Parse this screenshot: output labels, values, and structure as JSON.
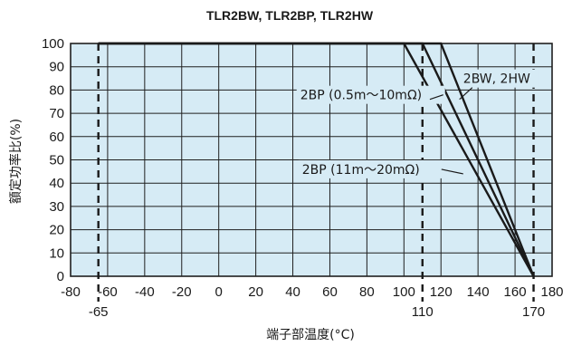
{
  "chart_data": {
    "type": "line",
    "title": "TLR2BW, TLR2BP, TLR2HW",
    "xlabel": "端子部温度(°C)",
    "ylabel": "額定功率比(%)",
    "xlim": [
      -80,
      180
    ],
    "ylim": [
      0,
      100
    ],
    "x_ticks": [
      "-80",
      "-60",
      "-40",
      "-20",
      "0",
      "20",
      "40",
      "60",
      "80",
      "100",
      "120",
      "140",
      "160",
      "180"
    ],
    "y_ticks": [
      "0",
      "10",
      "20",
      "30",
      "40",
      "50",
      "60",
      "70",
      "80",
      "90",
      "100"
    ],
    "extra_x_labels": [
      {
        "x": -65,
        "text": "-65"
      },
      {
        "x": 110,
        "text": "110"
      },
      {
        "x": 170,
        "text": "170"
      }
    ],
    "dashed_verticals": [
      -65,
      110,
      170
    ],
    "grid": true,
    "background_color": "#d6ebf5",
    "grid_color": "#1f1f1f",
    "series": [
      {
        "label": "2BP (11m～20mΩ)",
        "x": [
          -65,
          100,
          170
        ],
        "y": [
          100,
          100,
          0
        ]
      },
      {
        "label": "2BP (0.5m～10mΩ)",
        "x": [
          -65,
          110,
          170
        ],
        "y": [
          100,
          100,
          0
        ]
      },
      {
        "label": "2BW, 2HW",
        "x": [
          -65,
          120,
          170
        ],
        "y": [
          100,
          100,
          0
        ]
      }
    ],
    "annotations": [
      {
        "text": "2BW, 2HW",
        "x": 132,
        "y": 83,
        "arrow_to": [
          130,
          76
        ]
      },
      {
        "text": "2BP (0.5m～10mΩ)",
        "x": 44,
        "y": 76,
        "arrow_to": [
          114,
          76
        ]
      },
      {
        "text": "2BP (11m～20mΩ)",
        "x": 45,
        "y": 44,
        "arrow_to": [
          132,
          44
        ]
      }
    ]
  }
}
